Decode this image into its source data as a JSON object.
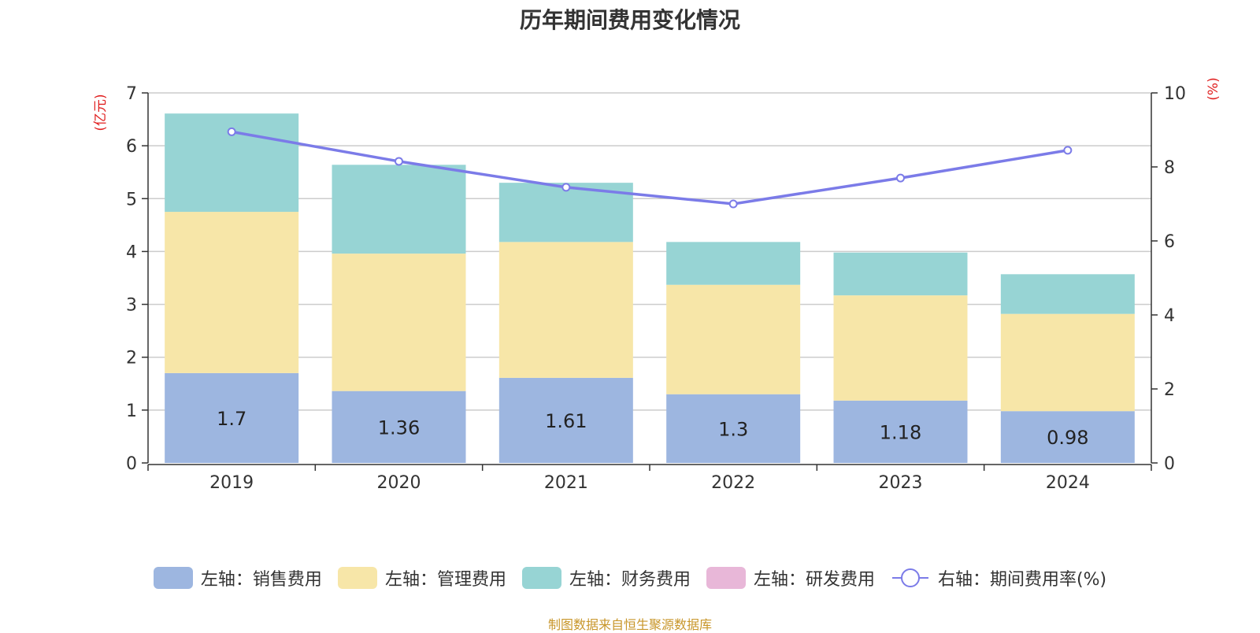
{
  "chart_data": {
    "type": "bar",
    "stacked": true,
    "title": "历年期间费用变化情况",
    "categories": [
      "2019",
      "2020",
      "2021",
      "2022",
      "2023",
      "2024"
    ],
    "left_axis": {
      "unit_label": "(亿元)",
      "ylim": [
        0,
        7
      ],
      "ticks": [
        "0",
        "1",
        "2",
        "3",
        "4",
        "5",
        "6",
        "7"
      ]
    },
    "right_axis": {
      "unit_label": "(%)",
      "ylim": [
        0,
        10
      ],
      "ticks": [
        "0",
        "2",
        "4",
        "6",
        "8",
        "10"
      ]
    },
    "series": [
      {
        "name": "左轴：销售费用",
        "axis": "left",
        "color": "#9db6e0",
        "values": [
          1.7,
          1.36,
          1.61,
          1.3,
          1.18,
          0.98
        ],
        "labels": [
          "1.7",
          "1.36",
          "1.61",
          "1.3",
          "1.18",
          "0.98"
        ]
      },
      {
        "name": "左轴：管理费用",
        "axis": "left",
        "color": "#f7e6a8",
        "values": [
          3.05,
          2.6,
          2.57,
          2.07,
          1.99,
          1.84
        ]
      },
      {
        "name": "左轴：财务费用",
        "axis": "left",
        "color": "#97d4d4",
        "values": [
          1.86,
          1.68,
          1.12,
          0.81,
          0.81,
          0.75
        ]
      },
      {
        "name": "左轴：研发费用",
        "axis": "left",
        "color": "#e8b7d8",
        "values": [
          0,
          0,
          0,
          0,
          0,
          0
        ]
      },
      {
        "name": "右轴：期间费用率(%)",
        "axis": "right",
        "type": "line",
        "color": "#7b7be8",
        "values": [
          8.95,
          8.15,
          7.45,
          7.0,
          7.7,
          8.45
        ]
      }
    ],
    "source_note": "制图数据来自恒生聚源数据库"
  }
}
